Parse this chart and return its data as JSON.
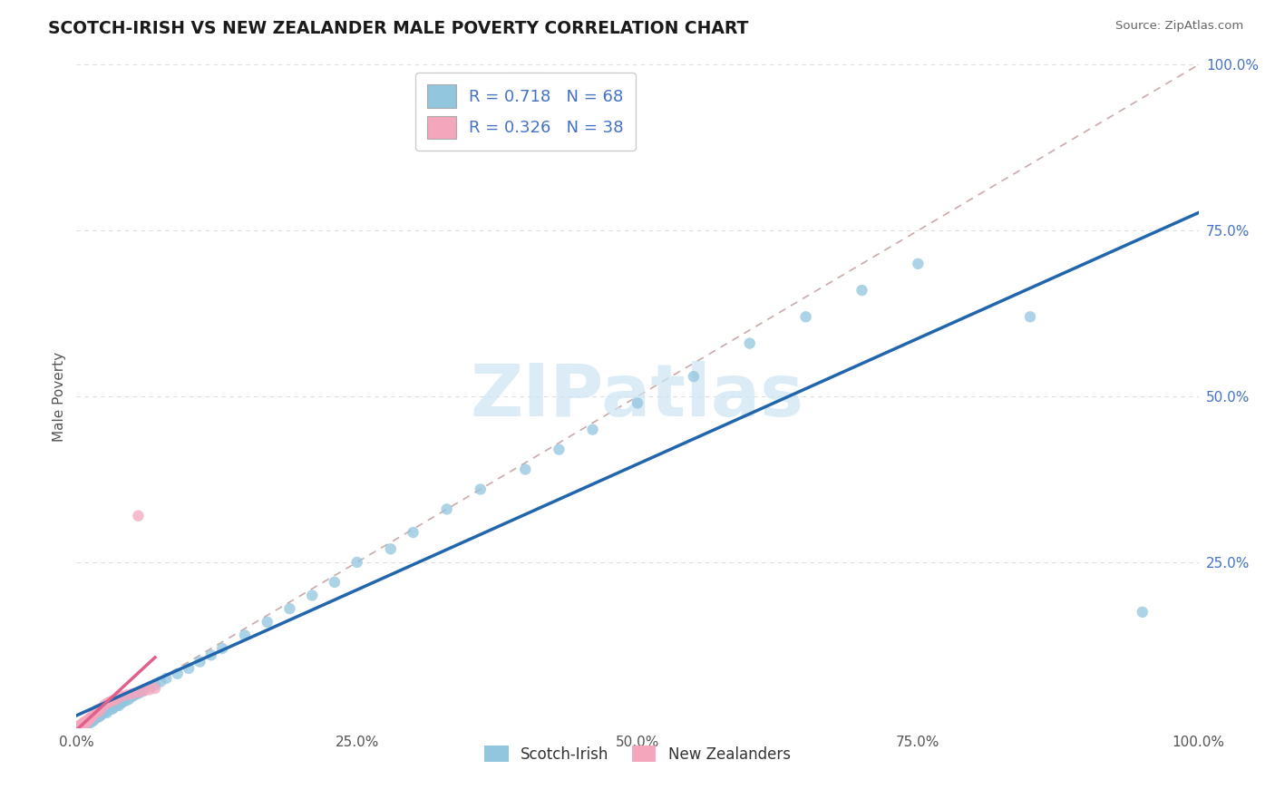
{
  "title": "SCOTCH-IRISH VS NEW ZEALANDER MALE POVERTY CORRELATION CHART",
  "source": "Source: ZipAtlas.com",
  "ylabel": "Male Poverty",
  "xlim": [
    0,
    1
  ],
  "ylim": [
    0,
    1
  ],
  "x_tick_labels": [
    "0.0%",
    "25.0%",
    "50.0%",
    "75.0%",
    "100.0%"
  ],
  "y_tick_labels": [
    "",
    "25.0%",
    "50.0%",
    "75.0%",
    "100.0%"
  ],
  "legend_labels": [
    "Scotch-Irish",
    "New Zealanders"
  ],
  "blue_r": 0.718,
  "blue_n": 68,
  "pink_r": 0.326,
  "pink_n": 38,
  "blue_color": "#92c5de",
  "pink_color": "#f4a6bd",
  "blue_line_color": "#2166ac",
  "pink_line_color": "#e0608a",
  "dash_color": "#ccaaaa",
  "watermark": "ZIPatlas",
  "watermark_color": "#cce5f5",
  "title_color": "#1a1a1a",
  "source_color": "#666666",
  "ytick_color": "#4472c4",
  "xtick_color": "#555555",
  "ylabel_color": "#555555",
  "grid_color": "#dddddd",
  "legend_text_color": "#4472c4",
  "legend_border_color": "#cccccc",
  "blue_scatter_x": [
    0.005,
    0.007,
    0.008,
    0.01,
    0.01,
    0.012,
    0.013,
    0.014,
    0.015,
    0.015,
    0.016,
    0.017,
    0.018,
    0.019,
    0.02,
    0.021,
    0.022,
    0.023,
    0.025,
    0.026,
    0.027,
    0.028,
    0.03,
    0.031,
    0.032,
    0.033,
    0.035,
    0.036,
    0.038,
    0.04,
    0.042,
    0.045,
    0.047,
    0.05,
    0.052,
    0.055,
    0.058,
    0.06,
    0.065,
    0.07,
    0.075,
    0.08,
    0.09,
    0.1,
    0.11,
    0.12,
    0.13,
    0.15,
    0.17,
    0.19,
    0.21,
    0.23,
    0.25,
    0.28,
    0.3,
    0.33,
    0.36,
    0.4,
    0.43,
    0.46,
    0.5,
    0.55,
    0.6,
    0.65,
    0.7,
    0.75,
    0.85,
    0.95
  ],
  "blue_scatter_y": [
    0.004,
    0.006,
    0.007,
    0.005,
    0.008,
    0.01,
    0.009,
    0.012,
    0.011,
    0.013,
    0.014,
    0.015,
    0.016,
    0.018,
    0.017,
    0.019,
    0.02,
    0.022,
    0.024,
    0.025,
    0.023,
    0.027,
    0.028,
    0.03,
    0.029,
    0.031,
    0.033,
    0.035,
    0.034,
    0.038,
    0.04,
    0.042,
    0.044,
    0.048,
    0.05,
    0.052,
    0.055,
    0.058,
    0.062,
    0.065,
    0.07,
    0.075,
    0.082,
    0.09,
    0.1,
    0.11,
    0.12,
    0.14,
    0.16,
    0.18,
    0.2,
    0.22,
    0.25,
    0.27,
    0.295,
    0.33,
    0.36,
    0.39,
    0.42,
    0.45,
    0.49,
    0.53,
    0.58,
    0.62,
    0.66,
    0.7,
    0.62,
    0.175
  ],
  "pink_scatter_x": [
    0.002,
    0.003,
    0.004,
    0.005,
    0.006,
    0.006,
    0.007,
    0.007,
    0.008,
    0.008,
    0.009,
    0.01,
    0.01,
    0.011,
    0.012,
    0.012,
    0.013,
    0.014,
    0.015,
    0.016,
    0.017,
    0.018,
    0.019,
    0.02,
    0.022,
    0.025,
    0.028,
    0.03,
    0.033,
    0.036,
    0.04,
    0.045,
    0.05,
    0.055,
    0.06,
    0.065,
    0.07,
    0.055
  ],
  "pink_scatter_y": [
    0.003,
    0.004,
    0.005,
    0.006,
    0.007,
    0.008,
    0.006,
    0.009,
    0.008,
    0.01,
    0.009,
    0.011,
    0.012,
    0.013,
    0.014,
    0.015,
    0.016,
    0.018,
    0.02,
    0.022,
    0.024,
    0.026,
    0.028,
    0.025,
    0.03,
    0.035,
    0.038,
    0.04,
    0.042,
    0.044,
    0.048,
    0.05,
    0.052,
    0.054,
    0.056,
    0.058,
    0.06,
    0.32
  ]
}
